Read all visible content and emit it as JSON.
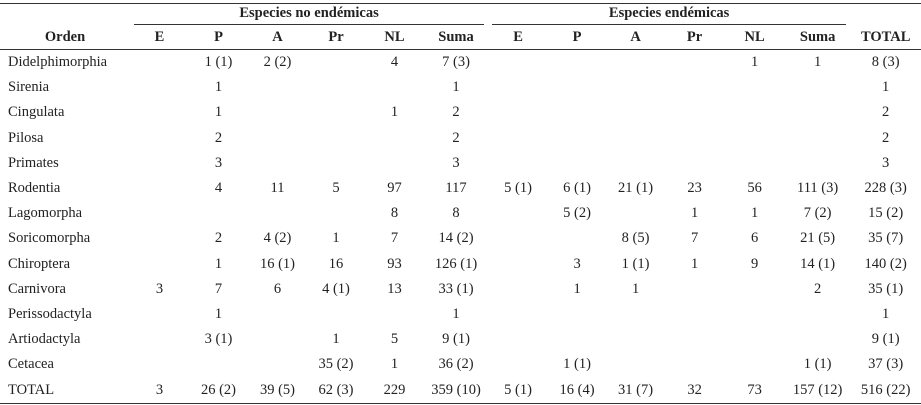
{
  "table": {
    "group_headers": [
      "Especies no endémicas",
      "Especies endémicas"
    ],
    "columns": [
      "Orden",
      "E",
      "P",
      "A",
      "Pr",
      "NL",
      "Suma",
      "E",
      "P",
      "A",
      "Pr",
      "NL",
      "Suma",
      "TOTAL"
    ],
    "rows": [
      [
        "Didelphimorphia",
        null,
        "1 (1)",
        "2 (2)",
        null,
        "4",
        "7 (3)",
        null,
        null,
        null,
        null,
        "1",
        "1",
        "8 (3)"
      ],
      [
        "Sirenia",
        null,
        "1",
        null,
        null,
        null,
        "1",
        null,
        null,
        null,
        null,
        null,
        null,
        "1"
      ],
      [
        "Cingulata",
        null,
        "1",
        null,
        null,
        "1",
        "2",
        null,
        null,
        null,
        null,
        null,
        null,
        "2"
      ],
      [
        "Pilosa",
        null,
        "2",
        null,
        null,
        null,
        "2",
        null,
        null,
        null,
        null,
        null,
        null,
        "2"
      ],
      [
        "Primates",
        null,
        "3",
        null,
        null,
        null,
        "3",
        null,
        null,
        null,
        null,
        null,
        null,
        "3"
      ],
      [
        "Rodentia",
        null,
        "4",
        "11",
        "5",
        "97",
        "117",
        "5 (1)",
        "6 (1)",
        "21 (1)",
        "23",
        "56",
        "111 (3)",
        "228 (3)"
      ],
      [
        "Lagomorpha",
        null,
        null,
        null,
        null,
        "8",
        "8",
        null,
        "5 (2)",
        null,
        "1",
        "1",
        "7 (2)",
        "15 (2)"
      ],
      [
        "Soricomorpha",
        null,
        "2",
        "4 (2)",
        "1",
        "7",
        "14 (2)",
        null,
        null,
        "8 (5)",
        "7",
        "6",
        "21 (5)",
        "35 (7)"
      ],
      [
        "Chiroptera",
        null,
        "1",
        "16 (1)",
        "16",
        "93",
        "126 (1)",
        null,
        "3",
        "1 (1)",
        "1",
        "9",
        "14 (1)",
        "140 (2)"
      ],
      [
        "Carnivora",
        "3",
        "7",
        "6",
        "4 (1)",
        "13",
        "33 (1)",
        null,
        "1",
        "1",
        null,
        null,
        "2",
        "35 (1)"
      ],
      [
        "Perissodactyla",
        null,
        "1",
        null,
        null,
        null,
        "1",
        null,
        null,
        null,
        null,
        null,
        null,
        "1"
      ],
      [
        "Artiodactyla",
        null,
        "3 (1)",
        null,
        "1",
        "5",
        "9 (1)",
        null,
        null,
        null,
        null,
        null,
        null,
        "9 (1)"
      ],
      [
        "Cetacea",
        null,
        null,
        null,
        "35 (2)",
        "1",
        "36 (2)",
        null,
        "1 (1)",
        null,
        null,
        null,
        "1 (1)",
        "37 (3)"
      ],
      [
        "TOTAL",
        "3",
        "26 (2)",
        "39 (5)",
        "62 (3)",
        "229",
        "359 (10)",
        "5 (1)",
        "16 (4)",
        "31 (7)",
        "32",
        "73",
        "157 (12)",
        "516 (22)"
      ]
    ]
  }
}
